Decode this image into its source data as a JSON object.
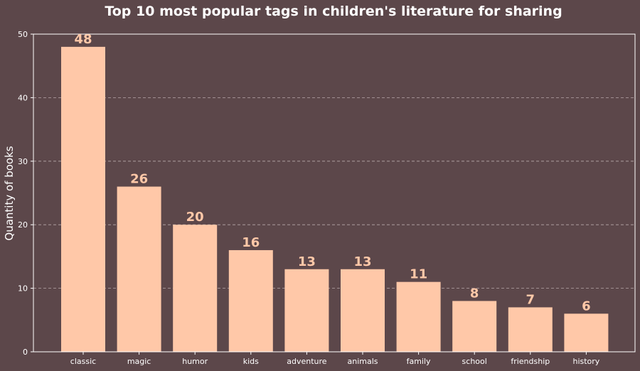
{
  "chart_data": {
    "type": "bar",
    "title": "Top 10 most popular tags in children's literature for sharing",
    "xlabel": "",
    "ylabel": "Quantity of books",
    "categories": [
      "classic",
      "magic",
      "humor",
      "kids",
      "adventure",
      "animals",
      "family",
      "school",
      "friendship",
      "history"
    ],
    "values": [
      48,
      26,
      20,
      16,
      13,
      13,
      11,
      8,
      7,
      6
    ],
    "value_labels": [
      "48",
      "26",
      "20",
      "16",
      "13",
      "13",
      "11",
      "8",
      "7",
      "6"
    ],
    "ylim": [
      0,
      50
    ],
    "yticks": [
      0,
      10,
      20,
      30,
      40,
      50
    ],
    "ytick_labels": [
      "0",
      "10",
      "20",
      "30",
      "40",
      "50"
    ],
    "grid": "horizontal dashed",
    "colors": {
      "background": "#5c474a",
      "bar": "#ffc8a8",
      "value_label": "#ffc8a8",
      "grid": "#b8a9aa",
      "axis": "#ffffff",
      "text": "#ffffff"
    }
  }
}
